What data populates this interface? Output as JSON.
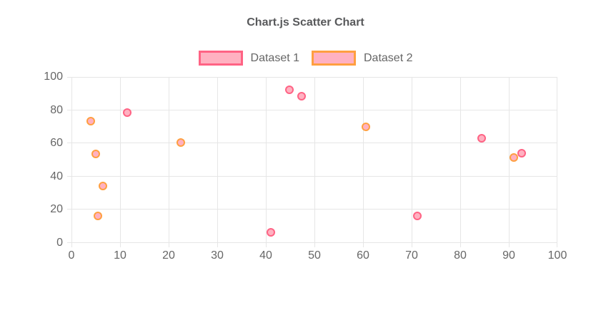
{
  "chart": {
    "title": "Chart.js Scatter Chart"
  },
  "chart_data": {
    "type": "scatter",
    "title": "Chart.js Scatter Chart",
    "xlabel": "",
    "ylabel": "",
    "xlim": [
      0,
      100
    ],
    "ylim": [
      0,
      100
    ],
    "x_ticks": [
      0,
      10,
      20,
      30,
      40,
      50,
      60,
      70,
      80,
      90,
      100
    ],
    "y_ticks": [
      0,
      20,
      40,
      60,
      80,
      100
    ],
    "grid": true,
    "legend_position": "top",
    "series": [
      {
        "name": "Dataset 1",
        "border_color": "#ff6384",
        "fill_color": "#ffb1c1",
        "points": [
          {
            "x": 11.5,
            "y": 78.4
          },
          {
            "x": 41.1,
            "y": 6.6
          },
          {
            "x": 44.8,
            "y": 92.3
          },
          {
            "x": 47.4,
            "y": 88.2
          },
          {
            "x": 71.2,
            "y": 16.2
          },
          {
            "x": 84.4,
            "y": 63.1
          },
          {
            "x": 92.6,
            "y": 54.2
          }
        ]
      },
      {
        "name": "Dataset 2",
        "border_color": "#ff9f40",
        "fill_color": "#ffb1c1",
        "points": [
          {
            "x": 4.0,
            "y": 73.4
          },
          {
            "x": 5.0,
            "y": 53.5
          },
          {
            "x": 5.5,
            "y": 16.2
          },
          {
            "x": 6.4,
            "y": 34.3
          },
          {
            "x": 22.5,
            "y": 60.5
          },
          {
            "x": 60.6,
            "y": 70.1
          },
          {
            "x": 91.1,
            "y": 51.6
          }
        ]
      }
    ],
    "colors": {
      "grid": "#e6e6e6",
      "tick_text": "#666666",
      "title_text": "#58595b"
    }
  }
}
